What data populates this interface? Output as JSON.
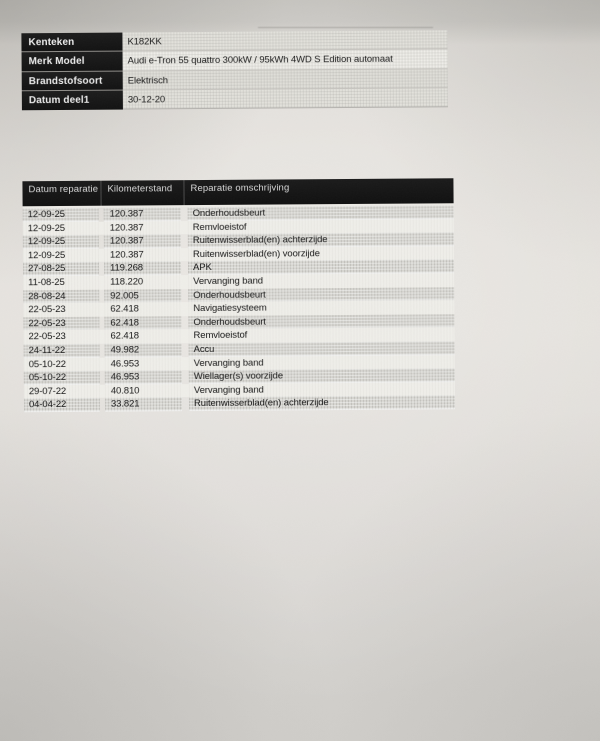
{
  "vehicle_info": {
    "rows": [
      {
        "label": "Kenteken",
        "value": "K182KK"
      },
      {
        "label": "Merk Model",
        "value": "Audi e-Tron 55 quattro 300kW / 95kWh 4WD S Edition automaat"
      },
      {
        "label": "Brandstofsoort",
        "value": "Elektrisch"
      },
      {
        "label": "Datum deel1",
        "value": "30-12-20"
      }
    ]
  },
  "repair_table": {
    "headers": [
      "Datum reparatie",
      "Kilometerstand",
      "Reparatie omschrijving"
    ],
    "rows": [
      {
        "datum": "12-09-25",
        "kilometerstand": "120.387",
        "omschrijving": "Onderhoudsbeurt"
      },
      {
        "datum": "12-09-25",
        "kilometerstand": "120.387",
        "omschrijving": "Remvloeistof"
      },
      {
        "datum": "12-09-25",
        "kilometerstand": "120.387",
        "omschrijving": "Ruitenwisserblad(en) achterzijde"
      },
      {
        "datum": "12-09-25",
        "kilometerstand": "120.387",
        "omschrijving": "Ruitenwisserblad(en) voorzijde"
      },
      {
        "datum": "27-08-25",
        "kilometerstand": "119.268",
        "omschrijving": "APK"
      },
      {
        "datum": "11-08-25",
        "kilometerstand": "118.220",
        "omschrijving": "Vervanging band"
      },
      {
        "datum": "28-08-24",
        "kilometerstand": "92.005",
        "omschrijving": "Onderhoudsbeurt"
      },
      {
        "datum": "22-05-23",
        "kilometerstand": "62.418",
        "omschrijving": "Navigatiesysteem"
      },
      {
        "datum": "22-05-23",
        "kilometerstand": "62.418",
        "omschrijving": "Onderhoudsbeurt"
      },
      {
        "datum": "22-05-23",
        "kilometerstand": "62.418",
        "omschrijving": "Remvloeistof"
      },
      {
        "datum": "24-11-22",
        "kilometerstand": "49.982",
        "omschrijving": "Accu"
      },
      {
        "datum": "05-10-22",
        "kilometerstand": "46.953",
        "omschrijving": "Vervanging band"
      },
      {
        "datum": "05-10-22",
        "kilometerstand": "46.953",
        "omschrijving": "Wiellager(s) voorzijde"
      },
      {
        "datum": "29-07-22",
        "kilometerstand": "40.810",
        "omschrijving": "Vervanging band"
      },
      {
        "datum": "04-04-22",
        "kilometerstand": "33.821",
        "omschrijving": "Ruitenwisserblad(en) achterzijde"
      }
    ]
  },
  "colors": {
    "table_header_bg": "#161616",
    "table_header_text": "#d9d9d9",
    "row_stripe_gray": "#d6d5d0",
    "row_stripe_white": "#efeee9",
    "paper": "#e0ddd8",
    "text": "#161616"
  }
}
